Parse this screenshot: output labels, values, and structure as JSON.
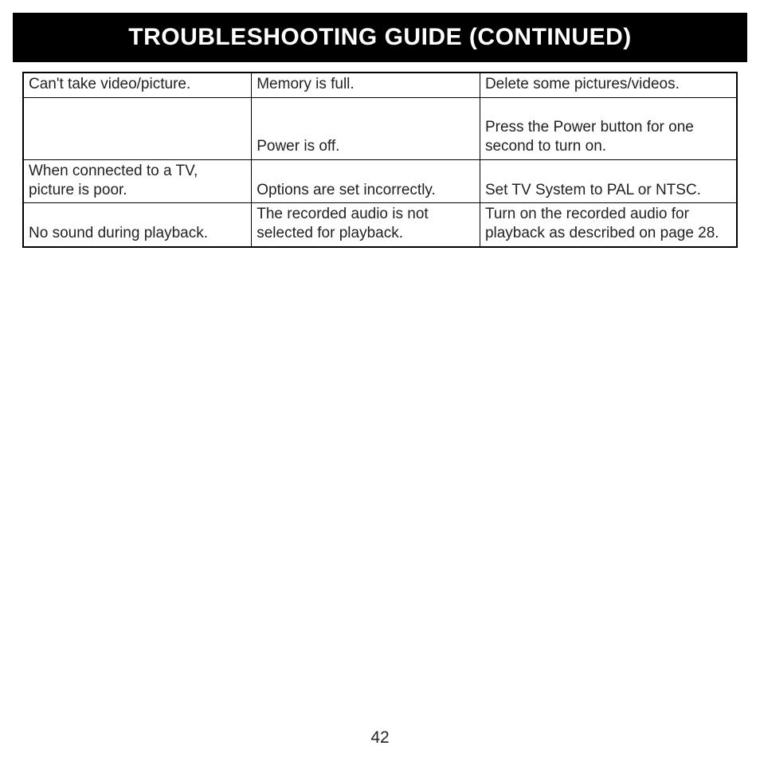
{
  "header": {
    "title": "TROUBLESHOOTING GUIDE (CONTINUED)"
  },
  "table": {
    "rows": [
      {
        "symptom": "Can't take video/picture.",
        "cause": "Memory is full.",
        "solution": "Delete some pictures/videos."
      },
      {
        "symptom": "",
        "cause": "Power is off.",
        "solution": "Press the Power button for one second to turn on."
      },
      {
        "symptom": "When connected to a TV, picture is poor.",
        "cause": "Options are set incorrectly.",
        "solution": "Set TV System to PAL or NTSC."
      },
      {
        "symptom": "No sound during playback.",
        "cause": "The recorded audio is not selected for playback.",
        "solution": "Turn on the recorded audio for playback as described on page 28."
      }
    ]
  },
  "page_number": "42"
}
